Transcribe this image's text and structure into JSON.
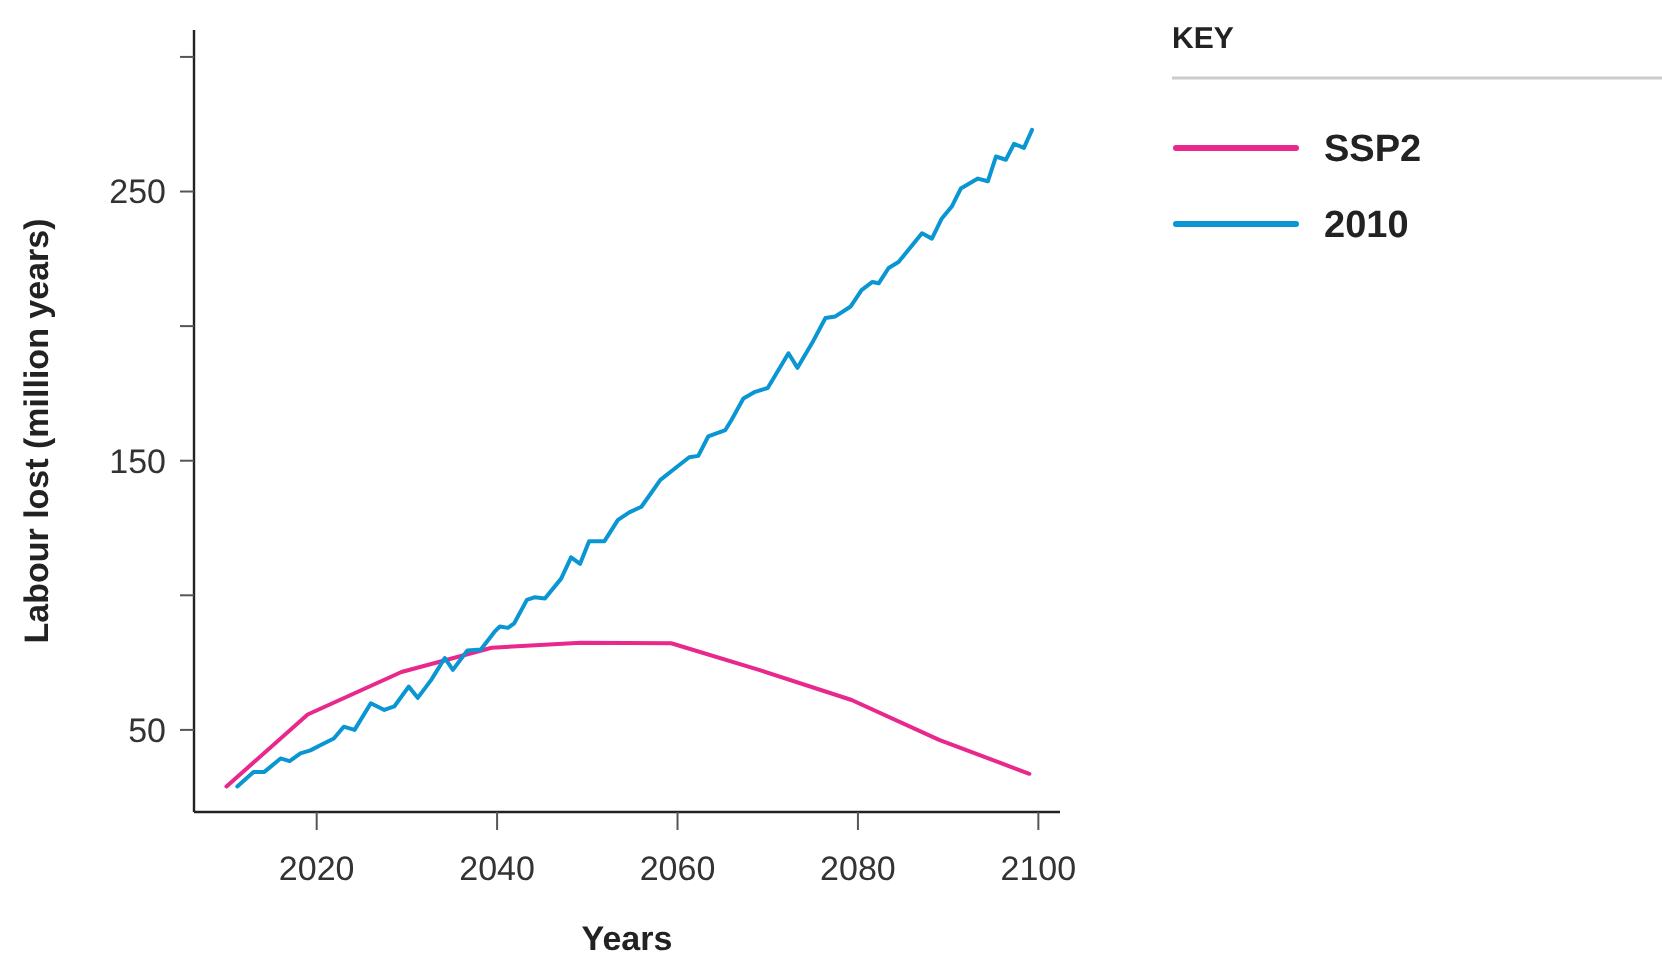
{
  "chart_data": {
    "type": "line",
    "xlabel": "Years",
    "ylabel": "Labour lost (million years)",
    "legend_title": "KEY",
    "legend": "right",
    "grid": false,
    "marker": "none",
    "line_style": "solid",
    "xlim": [
      2006.4,
      2102.4
    ],
    "xticks": [
      2020,
      2040,
      2060,
      2080,
      2100
    ],
    "ylim": [
      19.5,
      310
    ],
    "yticks": [
      50,
      {
        "value": 100,
        "label": null
      },
      150,
      {
        "value": 200,
        "label": null
      },
      250,
      {
        "value": 300,
        "label": null
      }
    ],
    "series": [
      {
        "name": "SSP2",
        "color": "#e8288c",
        "x": [
          2010,
          2019,
          2029.4,
          2039.4,
          2049.3,
          2059.3,
          2069.3,
          2079.3,
          2089,
          2099
        ],
        "values": [
          29,
          55.7,
          71.5,
          80.5,
          82.4,
          82.2,
          72,
          61.1,
          46.3,
          33.7
        ]
      },
      {
        "name": "2010",
        "color": "#0a96d2",
        "x": [
          2011.2,
          2013,
          2014.2,
          2016,
          2017,
          2018.2,
          2019.3,
          2020.4,
          2021.9,
          2023,
          2024.2,
          2026,
          2027.5,
          2028.6,
          2030.2,
          2031.2,
          2032.7,
          2034.2,
          2035.1,
          2036.7,
          2038.2,
          2039.7,
          2040.3,
          2041.2,
          2041.9,
          2043.3,
          2044.2,
          2045.3,
          2047.1,
          2048.2,
          2049.2,
          2050.2,
          2051.9,
          2053.4,
          2054.7,
          2056,
          2058.1,
          2059.7,
          2061.3,
          2062.3,
          2063.4,
          2065.3,
          2066,
          2067.3,
          2068.6,
          2070,
          2072.3,
          2073.3,
          2074.9,
          2076.4,
          2077.5,
          2079.2,
          2080.4,
          2081.6,
          2082.3,
          2083.4,
          2084.5,
          2087.1,
          2088.2,
          2089.3,
          2090.4,
          2091.4,
          2093.3,
          2094.4,
          2095.3,
          2096.4,
          2097.3,
          2098.4,
          2099.3
        ],
        "values": [
          29,
          34.4,
          34.4,
          39.4,
          38.4,
          41.3,
          42.4,
          44.3,
          46.8,
          51.2,
          50,
          59.9,
          57.4,
          58.7,
          66.1,
          61.9,
          68.6,
          76.7,
          72.3,
          79.5,
          79.9,
          86.4,
          88.4,
          87.9,
          89.6,
          98.3,
          99.3,
          98.8,
          106.2,
          114.1,
          111.7,
          120.1,
          120.1,
          128,
          130.9,
          132.9,
          142.9,
          147.1,
          151.3,
          151.8,
          159,
          161.4,
          165.2,
          173.1,
          175.6,
          177,
          189.9,
          184.5,
          193.6,
          203,
          203.6,
          207.3,
          213.4,
          216.4,
          215.9,
          221.6,
          223.8,
          234.5,
          232.5,
          240,
          244.4,
          251.1,
          254.8,
          253.8,
          263,
          261.8,
          267.7,
          266.2,
          272.9
        ]
      }
    ]
  }
}
